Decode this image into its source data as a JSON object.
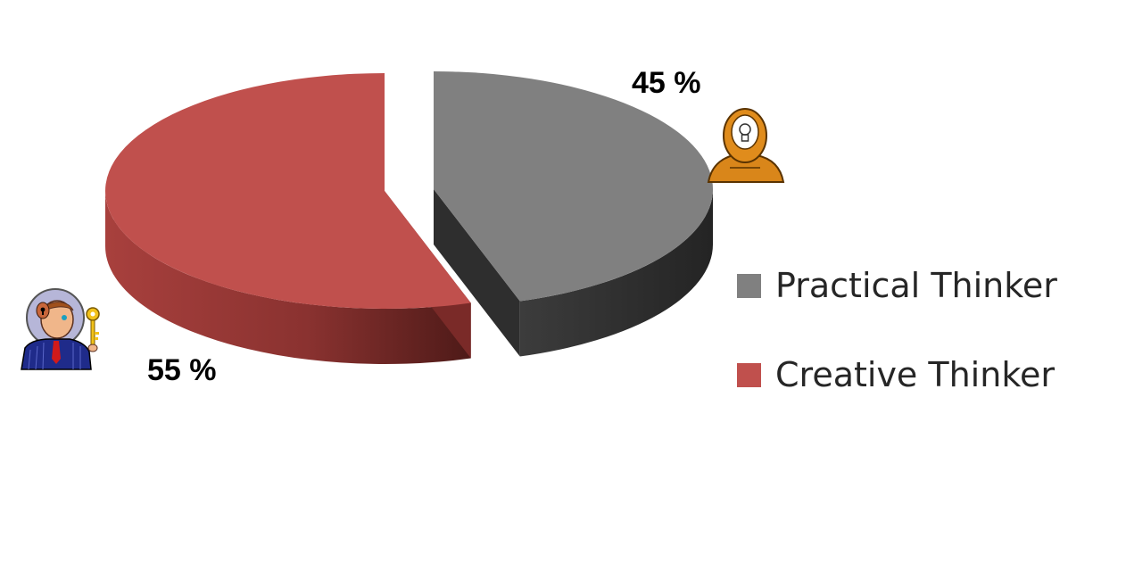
{
  "chart_data": {
    "type": "pie",
    "title": "",
    "style": "3d-exploded",
    "legend_position": "right",
    "slices": [
      {
        "name": "Practical Thinker",
        "value": 45,
        "label": "45 %",
        "color": "#808080",
        "side_color": "#2e2e2e"
      },
      {
        "name": "Creative Thinker",
        "value": 55,
        "label": "55 %",
        "color": "#c0504d",
        "side_color": "#7a2a28"
      }
    ]
  },
  "icons": {
    "practical": "lightbulb-head-icon",
    "creative": "businessman-key-icon"
  }
}
